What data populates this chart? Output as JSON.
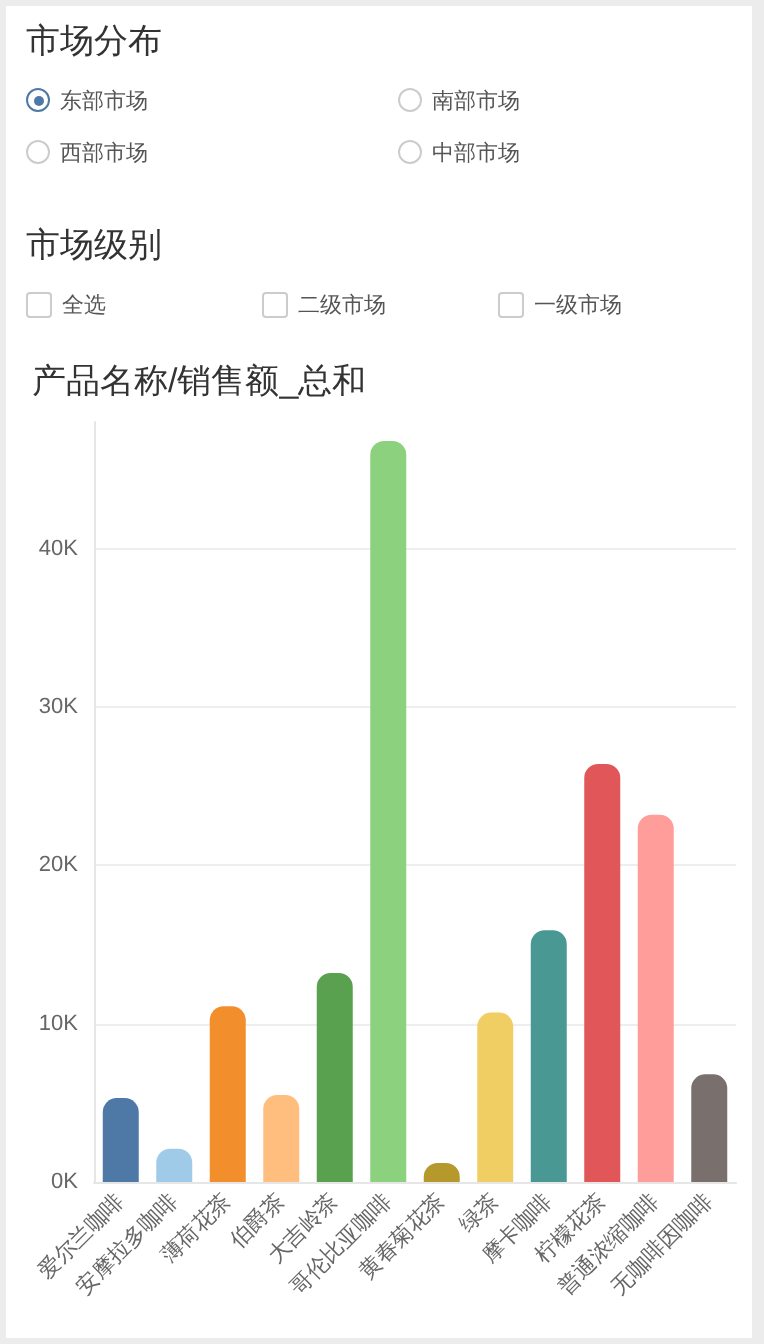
{
  "chart_data": {
    "type": "bar",
    "title": "产品名称/销售额_总和",
    "annotations": [
      "市场分布",
      "东部市场",
      "南部市场",
      "西部市场",
      "中部市场",
      "市场级别",
      "全选",
      "二级市场",
      "一级市场"
    ],
    "categories": [
      "爱尔兰咖啡",
      "安摩拉多咖啡",
      "薄荷花茶",
      "伯爵茶",
      "大吉岭茶",
      "哥伦比亚咖啡",
      "黄春菊花茶",
      "绿茶",
      "摩卡咖啡",
      "柠檬花茶",
      "普通浓缩咖啡",
      "无咖啡因咖啡"
    ],
    "values": [
      5300,
      2100,
      11100,
      5500,
      13200,
      46800,
      1200,
      10700,
      15900,
      26400,
      23200,
      6800
    ],
    "colors": [
      "#4e79a7",
      "#a0cbe8",
      "#f28e2b",
      "#ffbe7d",
      "#59a14f",
      "#8cd17d",
      "#b6992d",
      "#f1ce63",
      "#499894",
      "#e15759",
      "#ff9d9a",
      "#79706e"
    ],
    "ylim": [
      0,
      48000
    ],
    "yticks": [
      {
        "value": 0,
        "label": "0K"
      },
      {
        "value": 10000,
        "label": "10K"
      },
      {
        "value": 20000,
        "label": "20K"
      },
      {
        "value": 30000,
        "label": "30K"
      },
      {
        "value": 40000,
        "label": "40K"
      }
    ],
    "grid": "y"
  }
}
